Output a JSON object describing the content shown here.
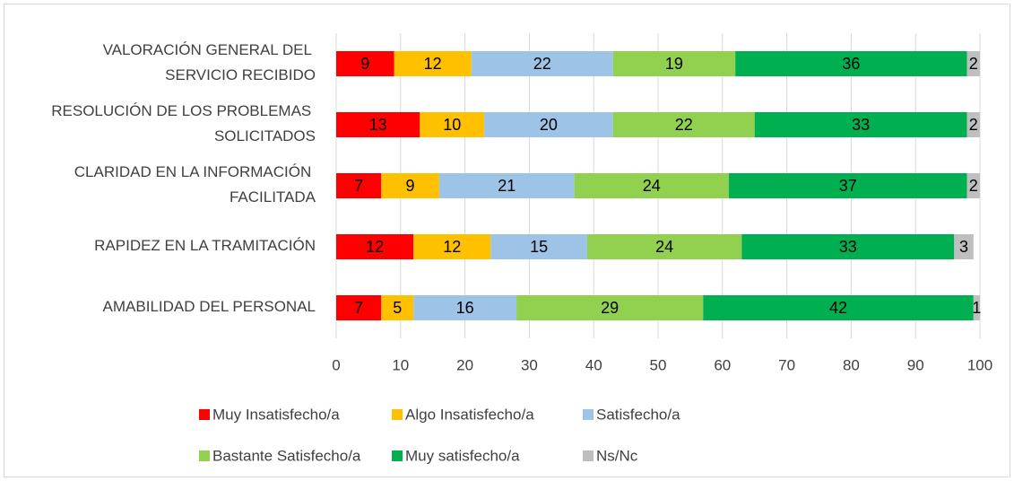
{
  "chart_data": {
    "type": "stacked_bar_horizontal",
    "categories": [
      "VALORACIÓN GENERAL DEL SERVICIO RECIBIDO",
      "RESOLUCIÓN DE LOS PROBLEMAS SOLICITADOS",
      "CLARIDAD EN LA INFORMACIÓN FACILITADA",
      "RAPIDEZ EN LA TRAMITACIÓN",
      "AMABILIDAD DEL PERSONAL"
    ],
    "series": [
      {
        "name": "Muy Insatisfecho/a",
        "color": "#ff0000",
        "values": [
          9,
          13,
          7,
          12,
          7
        ]
      },
      {
        "name": "Algo Insatisfecho/a",
        "color": "#ffc000",
        "values": [
          12,
          10,
          9,
          12,
          5
        ]
      },
      {
        "name": "Satisfecho/a",
        "color": "#9dc3e6",
        "values": [
          22,
          20,
          21,
          15,
          16
        ]
      },
      {
        "name": "Bastante Satisfecho/a",
        "color": "#92d050",
        "values": [
          19,
          22,
          24,
          24,
          29
        ]
      },
      {
        "name": "Muy satisfecho/a",
        "color": "#00b050",
        "values": [
          36,
          33,
          37,
          33,
          42
        ]
      },
      {
        "name": "Ns/Nc",
        "color": "#bfbfbf",
        "values": [
          2,
          2,
          2,
          3,
          1
        ]
      }
    ],
    "xlim": [
      0,
      100
    ],
    "xticks": [
      0,
      10,
      20,
      30,
      40,
      50,
      60,
      70,
      80,
      90,
      100
    ],
    "grid": true,
    "legend": "bottom"
  }
}
